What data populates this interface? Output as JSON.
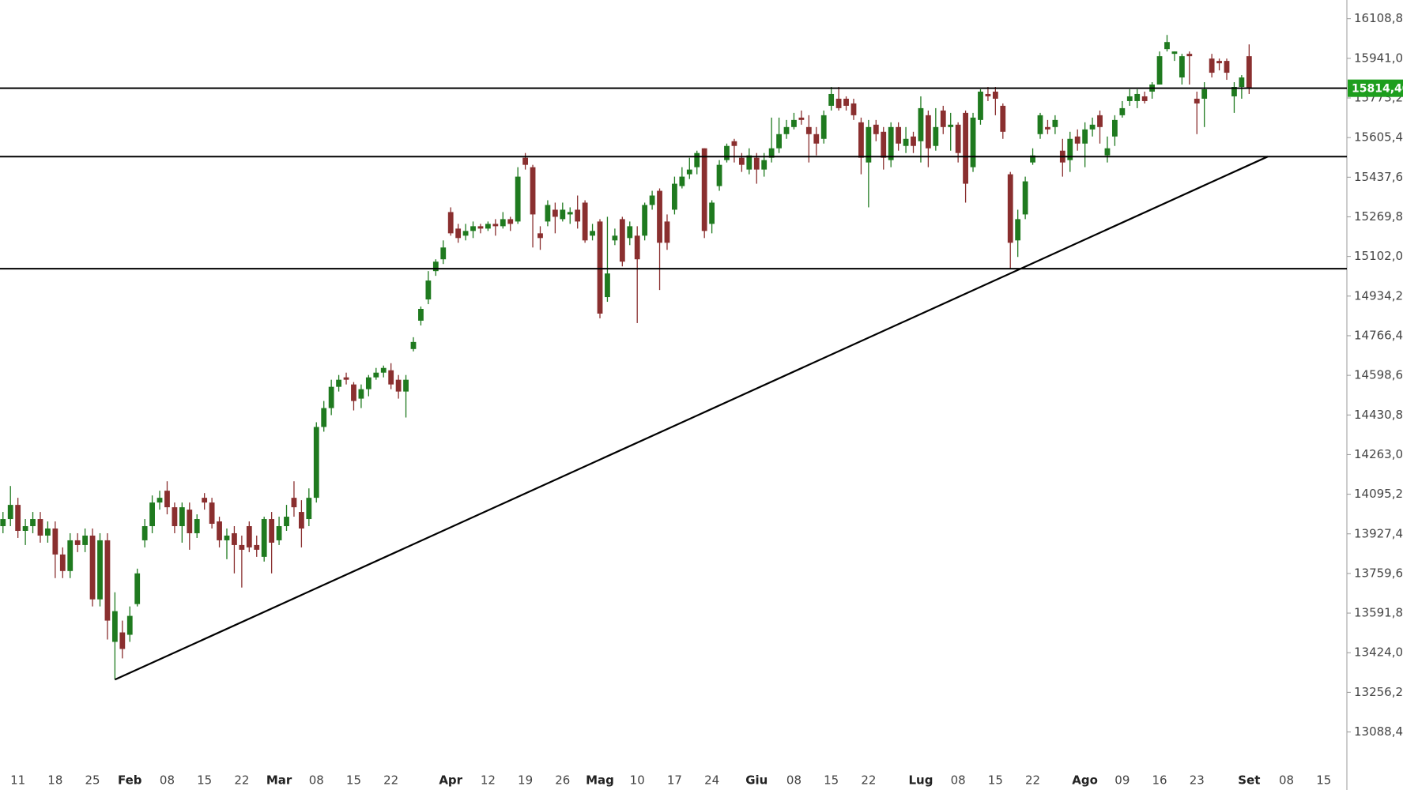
{
  "chart_data": {
    "type": "candlestick",
    "up_color": "#1f7a1f",
    "down_color": "#8a2f2f",
    "xlim": [
      -0.4,
      180.1
    ],
    "ylim": [
      12836,
      16188
    ],
    "x": [
      0,
      1,
      2,
      3,
      4,
      5,
      6,
      7,
      8,
      9,
      10,
      11,
      12,
      13,
      14,
      15,
      16,
      17,
      18,
      19,
      20,
      21,
      22,
      23,
      24,
      25,
      26,
      27,
      28,
      29,
      30,
      31,
      32,
      33,
      34,
      35,
      36,
      37,
      38,
      39,
      40,
      41,
      42,
      43,
      44,
      45,
      46,
      47,
      48,
      49,
      50,
      51,
      52,
      53,
      54,
      55,
      56,
      57,
      58,
      59,
      60,
      61,
      62,
      63,
      64,
      65,
      66,
      67,
      68,
      69,
      70,
      71,
      72,
      73,
      74,
      75,
      76,
      77,
      78,
      79,
      80,
      81,
      82,
      83,
      84,
      85,
      86,
      87,
      88,
      89,
      90,
      91,
      92,
      93,
      94,
      95,
      96,
      97,
      98,
      99,
      100,
      101,
      102,
      103,
      104,
      105,
      106,
      107,
      108,
      109,
      110,
      111,
      112,
      113,
      114,
      115,
      116,
      117,
      118,
      119,
      120,
      121,
      122,
      123,
      124,
      125,
      126,
      127,
      128,
      129,
      130,
      131,
      132,
      133,
      134,
      135,
      136,
      137,
      138,
      139,
      140,
      141,
      142,
      143,
      144,
      145,
      146,
      147,
      148,
      149,
      150,
      151,
      152,
      153,
      154,
      155,
      156,
      157,
      158,
      159,
      160,
      161,
      162,
      163,
      164,
      165,
      166,
      167
    ],
    "open": [
      13960,
      13990,
      14050,
      13940,
      13960,
      13990,
      13920,
      13950,
      13840,
      13770,
      13900,
      13880,
      13920,
      13650,
      13900,
      13470,
      13510,
      13500,
      13630,
      13900,
      13960,
      14060,
      14110,
      14040,
      13960,
      14030,
      13930,
      14080,
      14060,
      13980,
      13900,
      13930,
      13880,
      13960,
      13880,
      13830,
      13990,
      13900,
      13960,
      14080,
      14020,
      13990,
      14080,
      14380,
      14460,
      14550,
      14590,
      14560,
      14500,
      14540,
      14590,
      14610,
      14620,
      14580,
      14530,
      14710,
      14830,
      14920,
      15040,
      15090,
      15290,
      15220,
      15190,
      15210,
      15230,
      15220,
      15240,
      15230,
      15260,
      15250,
      15520,
      15480,
      15200,
      15250,
      15300,
      15260,
      15280,
      15300,
      15330,
      15190,
      15250,
      14930,
      15170,
      15260,
      15180,
      15190,
      15190,
      15320,
      15380,
      15250,
      15300,
      15400,
      15450,
      15480,
      15560,
      15240,
      15400,
      15510,
      15590,
      15520,
      15470,
      15520,
      15470,
      15520,
      15560,
      15620,
      15650,
      15690,
      15650,
      15620,
      15600,
      15740,
      15770,
      15770,
      15750,
      15670,
      15500,
      15660,
      15630,
      15510,
      15650,
      15570,
      15610,
      15590,
      15700,
      15570,
      15720,
      15650,
      15660,
      15710,
      15480,
      15680,
      15790,
      15800,
      15740,
      15450,
      15170,
      15280,
      15500,
      15620,
      15650,
      15650,
      15550,
      15510,
      15610,
      15580,
      15640,
      15700,
      15530,
      15610,
      15700,
      15760,
      15760,
      15780,
      15800,
      15830,
      15980,
      15960,
      15860,
      15960,
      15770,
      15770,
      15940,
      15930,
      15930,
      15780,
      15820,
      15950
    ],
    "high": [
      14020,
      14130,
      14080,
      13990,
      14020,
      14020,
      13980,
      13980,
      13870,
      13930,
      13930,
      13950,
      13950,
      13930,
      13930,
      13680,
      13560,
      13620,
      13780,
      13990,
      14090,
      14110,
      14150,
      14060,
      14060,
      14060,
      14010,
      14100,
      14080,
      14000,
      13950,
      13960,
      13920,
      13980,
      13920,
      14000,
      14020,
      14000,
      14050,
      14150,
      14070,
      14120,
      14400,
      14490,
      14580,
      14600,
      14610,
      14570,
      14560,
      14600,
      14630,
      14640,
      14650,
      14600,
      14600,
      14760,
      14890,
      15040,
      15090,
      15170,
      15310,
      15240,
      15240,
      15250,
      15240,
      15250,
      15260,
      15290,
      15270,
      15480,
      15540,
      15490,
      15230,
      15340,
      15330,
      15330,
      15310,
      15360,
      15340,
      15240,
      15260,
      15270,
      15220,
      15270,
      15250,
      15230,
      15330,
      15380,
      15390,
      15280,
      15440,
      15480,
      15520,
      15550,
      15560,
      15340,
      15510,
      15580,
      15600,
      15540,
      15560,
      15540,
      15540,
      15690,
      15690,
      15680,
      15710,
      15720,
      15700,
      15650,
      15720,
      15820,
      15820,
      15780,
      15770,
      15690,
      15680,
      15680,
      15650,
      15670,
      15670,
      15650,
      15630,
      15780,
      15720,
      15730,
      15740,
      15710,
      15670,
      15720,
      15710,
      15810,
      15820,
      15820,
      15750,
      15460,
      15300,
      15440,
      15560,
      15710,
      15680,
      15700,
      15600,
      15630,
      15640,
      15670,
      15690,
      15720,
      15610,
      15700,
      15760,
      15810,
      15810,
      15800,
      15840,
      15970,
      16040,
      15970,
      15960,
      15970,
      15800,
      15840,
      15960,
      15940,
      15940,
      15840,
      15870,
      16000
    ],
    "low": [
      13930,
      13960,
      13910,
      13880,
      13930,
      13890,
      13890,
      13740,
      13740,
      13740,
      13850,
      13850,
      13620,
      13620,
      13480,
      13310,
      13400,
      13470,
      13620,
      13870,
      13930,
      14030,
      14010,
      13930,
      13890,
      13860,
      13910,
      14030,
      13950,
      13870,
      13820,
      13760,
      13700,
      13850,
      13830,
      13810,
      13760,
      13880,
      13940,
      14000,
      13870,
      13960,
      14060,
      14360,
      14430,
      14530,
      14560,
      14450,
      14460,
      14510,
      14580,
      14590,
      14540,
      14500,
      14420,
      14700,
      14810,
      14900,
      15020,
      15070,
      15190,
      15160,
      15170,
      15180,
      15200,
      15210,
      15190,
      15220,
      15210,
      15240,
      15470,
      15140,
      15130,
      15230,
      15200,
      15250,
      15240,
      15220,
      15160,
      15170,
      14840,
      14910,
      15150,
      15060,
      15150,
      14820,
      15170,
      15300,
      14960,
      15130,
      15280,
      15390,
      15430,
      15450,
      15180,
      15200,
      15380,
      15500,
      15500,
      15460,
      15450,
      15410,
      15440,
      15500,
      15540,
      15600,
      15640,
      15660,
      15500,
      15530,
      15580,
      15720,
      15720,
      15720,
      15680,
      15450,
      15310,
      15590,
      15470,
      15480,
      15550,
      15540,
      15540,
      15500,
      15480,
      15550,
      15620,
      15550,
      15500,
      15330,
      15460,
      15660,
      15760,
      15700,
      15600,
      15050,
      15100,
      15260,
      15490,
      15600,
      15620,
      15620,
      15440,
      15460,
      15550,
      15480,
      15610,
      15580,
      15500,
      15570,
      15690,
      15740,
      15730,
      15750,
      15770,
      15830,
      15970,
      15930,
      15830,
      15830,
      15620,
      15650,
      15860,
      15890,
      15850,
      15710,
      15770,
      15790
    ],
    "close": [
      13990,
      14050,
      13940,
      13960,
      13990,
      13920,
      13950,
      13840,
      13770,
      13900,
      13880,
      13920,
      13650,
      13900,
      13560,
      13600,
      13440,
      13580,
      13760,
      13960,
      14060,
      14080,
      14040,
      13960,
      14040,
      13930,
      13990,
      14060,
      13970,
      13900,
      13920,
      13880,
      13860,
      13870,
      13860,
      13990,
      13890,
      13960,
      14000,
      14040,
      13950,
      14080,
      14380,
      14460,
      14550,
      14580,
      14580,
      14490,
      14540,
      14590,
      14610,
      14630,
      14560,
      14530,
      14580,
      14740,
      14880,
      15000,
      15080,
      15140,
      15200,
      15180,
      15210,
      15230,
      15220,
      15240,
      15230,
      15260,
      15240,
      15440,
      15490,
      15280,
      15180,
      15320,
      15270,
      15300,
      15290,
      15250,
      15170,
      15210,
      14860,
      15030,
      15190,
      15080,
      15230,
      15090,
      15320,
      15360,
      15160,
      15160,
      15410,
      15440,
      15470,
      15540,
      15210,
      15330,
      15490,
      15570,
      15570,
      15490,
      15530,
      15470,
      15510,
      15560,
      15620,
      15650,
      15680,
      15680,
      15620,
      15580,
      15700,
      15790,
      15730,
      15740,
      15700,
      15520,
      15650,
      15620,
      15520,
      15650,
      15580,
      15600,
      15570,
      15730,
      15560,
      15650,
      15650,
      15660,
      15540,
      15410,
      15690,
      15800,
      15780,
      15770,
      15630,
      15160,
      15260,
      15420,
      15530,
      15700,
      15640,
      15680,
      15500,
      15600,
      15580,
      15640,
      15660,
      15650,
      15560,
      15680,
      15730,
      15780,
      15790,
      15760,
      15830,
      15950,
      16010,
      15970,
      15950,
      15950,
      15750,
      15810,
      15880,
      15920,
      15880,
      15820,
      15860,
      15814.4
    ],
    "yticks": [
      {
        "value": 13088.4,
        "label": "13088,40"
      },
      {
        "value": 13256.2,
        "label": "13256,20"
      },
      {
        "value": 13424,
        "label": "13424,00"
      },
      {
        "value": 13591.8,
        "label": "13591,80"
      },
      {
        "value": 13759.6,
        "label": "13759,60"
      },
      {
        "value": 13927.4,
        "label": "13927,40"
      },
      {
        "value": 14095.2,
        "label": "14095,20"
      },
      {
        "value": 14263,
        "label": "14263,00"
      },
      {
        "value": 14430.8,
        "label": "14430,80"
      },
      {
        "value": 14598.6,
        "label": "14598,60"
      },
      {
        "value": 14766.4,
        "label": "14766,40"
      },
      {
        "value": 14934.2,
        "label": "14934,20"
      },
      {
        "value": 15102,
        "label": "15102,00"
      },
      {
        "value": 15269.8,
        "label": "15269,80"
      },
      {
        "value": 15437.6,
        "label": "15437,60"
      },
      {
        "value": 15605.4,
        "label": "15605,40"
      },
      {
        "value": 15773.2,
        "label": "15773,20"
      },
      {
        "value": 15941,
        "label": "15941,00"
      },
      {
        "value": 16108.8,
        "label": "16108,80"
      }
    ],
    "xticks": [
      {
        "value": 2,
        "label": "11"
      },
      {
        "value": 7,
        "label": "18"
      },
      {
        "value": 12,
        "label": "25"
      },
      {
        "value": 17,
        "label": "Feb"
      },
      {
        "value": 22,
        "label": "08"
      },
      {
        "value": 27,
        "label": "15"
      },
      {
        "value": 32,
        "label": "22"
      },
      {
        "value": 37,
        "label": "Mar"
      },
      {
        "value": 42,
        "label": "08"
      },
      {
        "value": 47,
        "label": "15"
      },
      {
        "value": 52,
        "label": "22"
      },
      {
        "value": 60,
        "label": "Apr"
      },
      {
        "value": 65,
        "label": "12"
      },
      {
        "value": 70,
        "label": "19"
      },
      {
        "value": 75,
        "label": "26"
      },
      {
        "value": 80,
        "label": "Mag"
      },
      {
        "value": 85,
        "label": "10"
      },
      {
        "value": 90,
        "label": "17"
      },
      {
        "value": 95,
        "label": "24"
      },
      {
        "value": 101,
        "label": "Giu"
      },
      {
        "value": 106,
        "label": "08"
      },
      {
        "value": 111,
        "label": "15"
      },
      {
        "value": 116,
        "label": "22"
      },
      {
        "value": 123,
        "label": "Lug"
      },
      {
        "value": 128,
        "label": "08"
      },
      {
        "value": 133,
        "label": "15"
      },
      {
        "value": 138,
        "label": "22"
      },
      {
        "value": 145,
        "label": "Ago"
      },
      {
        "value": 150,
        "label": "09"
      },
      {
        "value": 155,
        "label": "16"
      },
      {
        "value": 160,
        "label": "23"
      },
      {
        "value": 167,
        "label": "Set"
      },
      {
        "value": 172,
        "label": "08"
      },
      {
        "value": 177,
        "label": "15"
      }
    ],
    "levels": [
      15814.4,
      15525,
      15050
    ],
    "trendline": {
      "x": [
        15,
        169.5
      ],
      "y": [
        13310,
        15525
      ]
    },
    "last_price": {
      "value": 15814.4,
      "label": "15814,40",
      "color": "#1e9e1e"
    }
  }
}
